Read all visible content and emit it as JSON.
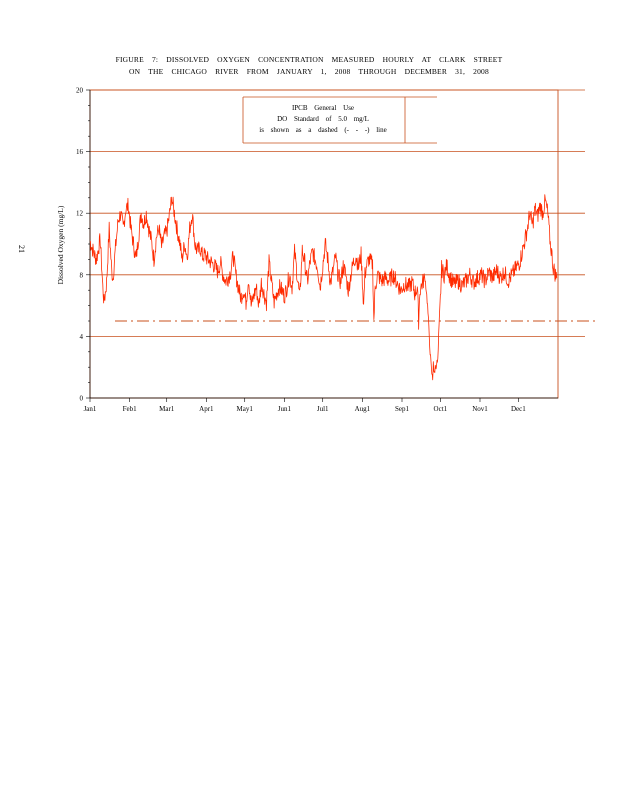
{
  "figure": {
    "title_line1": "FIGURE 7: DISSOLVED OXYGEN CONCENTRATION MEASURED HOURLY AT CLARK STREET",
    "title_line2": "ON THE CHICAGO RIVER FROM JANUARY 1, 2008 THROUGH DECEMBER 31, 2008",
    "page_number": "21"
  },
  "legend": {
    "line1": "IPCB General Use",
    "line2": "DO Standard of 5.0 mg/L",
    "line3": "is shown as a dashed (- - -) line"
  },
  "colors": {
    "series": "#ff2a00",
    "axis_frame": "#c8501e",
    "gridline": "#c8501e",
    "text": "#000000"
  },
  "chart_data": {
    "type": "line",
    "title": "FIGURE 7: DISSOLVED OXYGEN CONCENTRATION MEASURED HOURLY AT CLARK STREET ON THE CHICAGO RIVER FROM JANUARY 1, 2008 THROUGH DECEMBER 31, 2008",
    "xlabel": "",
    "ylabel": "Dissolved Oxygen (mg/L)",
    "xlim": [
      0,
      366
    ],
    "ylim": [
      0,
      20
    ],
    "yticks": [
      0,
      4,
      8,
      12,
      16,
      20
    ],
    "gridlines_y": [
      4,
      8,
      12,
      16,
      20
    ],
    "x_ticks": [
      {
        "label": "Jan1",
        "day": 0
      },
      {
        "label": "Feb1",
        "day": 31
      },
      {
        "label": "Mar1",
        "day": 60
      },
      {
        "label": "Apr1",
        "day": 91
      },
      {
        "label": "May1",
        "day": 121
      },
      {
        "label": "Jun1",
        "day": 152
      },
      {
        "label": "Jul1",
        "day": 182
      },
      {
        "label": "Aug1",
        "day": 213
      },
      {
        "label": "Sep1",
        "day": 244
      },
      {
        "label": "Oct1",
        "day": 274
      },
      {
        "label": "Nov1",
        "day": 305
      },
      {
        "label": "Dec1",
        "day": 335
      }
    ],
    "standard": {
      "value": 5.0,
      "style": "dashed"
    },
    "series": [
      {
        "name": "Dissolved Oxygen (hourly)",
        "points": [
          [
            0,
            10.2
          ],
          [
            3,
            9.4
          ],
          [
            5,
            9.0
          ],
          [
            8,
            10.3
          ],
          [
            10,
            7.2
          ],
          [
            11,
            6.2
          ],
          [
            13,
            7.5
          ],
          [
            15,
            11.0
          ],
          [
            17,
            8.2
          ],
          [
            18,
            7.8
          ],
          [
            20,
            9.8
          ],
          [
            22,
            11.5
          ],
          [
            24,
            12.0
          ],
          [
            26,
            11.0
          ],
          [
            28,
            12.3
          ],
          [
            30,
            12.5
          ],
          [
            32,
            11.0
          ],
          [
            34,
            10.0
          ],
          [
            36,
            9.0
          ],
          [
            38,
            10.5
          ],
          [
            40,
            12.0
          ],
          [
            42,
            11.3
          ],
          [
            44,
            12.0
          ],
          [
            46,
            11.0
          ],
          [
            48,
            10.2
          ],
          [
            50,
            9.0
          ],
          [
            52,
            10.5
          ],
          [
            54,
            11.0
          ],
          [
            56,
            9.8
          ],
          [
            58,
            10.5
          ],
          [
            60,
            10.8
          ],
          [
            62,
            11.8
          ],
          [
            64,
            13.0
          ],
          [
            66,
            12.0
          ],
          [
            68,
            11.0
          ],
          [
            70,
            10.2
          ],
          [
            72,
            9.0
          ],
          [
            74,
            10.0
          ],
          [
            76,
            9.2
          ],
          [
            78,
            11.0
          ],
          [
            80,
            12.0
          ],
          [
            82,
            10.0
          ],
          [
            84,
            9.5
          ],
          [
            86,
            9.8
          ],
          [
            88,
            9.2
          ],
          [
            90,
            9.3
          ],
          [
            92,
            9.0
          ],
          [
            95,
            8.8
          ],
          [
            98,
            8.5
          ],
          [
            100,
            8.2
          ],
          [
            102,
            8.8
          ],
          [
            104,
            8.0
          ],
          [
            106,
            7.6
          ],
          [
            108,
            7.8
          ],
          [
            110,
            8.2
          ],
          [
            112,
            9.3
          ],
          [
            114,
            8.0
          ],
          [
            116,
            7.2
          ],
          [
            118,
            6.5
          ],
          [
            120,
            7.0
          ],
          [
            122,
            6.2
          ],
          [
            124,
            7.8
          ],
          [
            126,
            6.0
          ],
          [
            128,
            6.6
          ],
          [
            130,
            7.2
          ],
          [
            132,
            6.0
          ],
          [
            134,
            7.5
          ],
          [
            136,
            6.8
          ],
          [
            138,
            6.2
          ],
          [
            140,
            8.8
          ],
          [
            142,
            7.5
          ],
          [
            144,
            6.2
          ],
          [
            146,
            6.8
          ],
          [
            148,
            7.2
          ],
          [
            150,
            7.0
          ],
          [
            152,
            6.6
          ],
          [
            154,
            7.2
          ],
          [
            156,
            8.0
          ],
          [
            158,
            7.2
          ],
          [
            160,
            9.5
          ],
          [
            162,
            8.0
          ],
          [
            164,
            6.5
          ],
          [
            166,
            9.6
          ],
          [
            168,
            8.8
          ],
          [
            170,
            7.5
          ],
          [
            172,
            8.8
          ],
          [
            174,
            9.5
          ],
          [
            176,
            9.0
          ],
          [
            178,
            8.5
          ],
          [
            180,
            7.2
          ],
          [
            182,
            8.6
          ],
          [
            184,
            10.0
          ],
          [
            186,
            9.0
          ],
          [
            188,
            7.5
          ],
          [
            190,
            8.2
          ],
          [
            192,
            9.2
          ],
          [
            194,
            8.0
          ],
          [
            196,
            7.5
          ],
          [
            198,
            8.6
          ],
          [
            200,
            8.0
          ],
          [
            202,
            7.0
          ],
          [
            204,
            8.0
          ],
          [
            206,
            8.8
          ],
          [
            208,
            9.2
          ],
          [
            210,
            8.5
          ],
          [
            212,
            9.3
          ],
          [
            214,
            6.0
          ],
          [
            215,
            8.0
          ],
          [
            216,
            8.5
          ],
          [
            218,
            9.0
          ],
          [
            219,
            8.9
          ],
          [
            221,
            8.7
          ],
          [
            222,
            5.0
          ],
          [
            223,
            7.2
          ],
          [
            225,
            8.0
          ],
          [
            228,
            7.6
          ],
          [
            231,
            7.8
          ],
          [
            234,
            7.6
          ],
          [
            237,
            8.0
          ],
          [
            240,
            7.5
          ],
          [
            243,
            7.0
          ],
          [
            246,
            7.4
          ],
          [
            249,
            7.2
          ],
          [
            252,
            7.5
          ],
          [
            254,
            6.8
          ],
          [
            256,
            7.2
          ],
          [
            257,
            5.0
          ],
          [
            258,
            7.0
          ],
          [
            260,
            7.5
          ],
          [
            262,
            7.8
          ],
          [
            263,
            7.0
          ],
          [
            264,
            6.0
          ],
          [
            265,
            4.5
          ],
          [
            266,
            3.0
          ],
          [
            267,
            1.8
          ],
          [
            268,
            1.2
          ],
          [
            268.5,
            2.5
          ],
          [
            269,
            1.5
          ],
          [
            270,
            2.0
          ],
          [
            271,
            2.2
          ],
          [
            272,
            2.4
          ],
          [
            275,
            8.4
          ],
          [
            277,
            8.0
          ],
          [
            279,
            8.6
          ],
          [
            281,
            8.0
          ],
          [
            283,
            7.6
          ],
          [
            285,
            7.4
          ],
          [
            288,
            7.6
          ],
          [
            291,
            7.3
          ],
          [
            294,
            7.6
          ],
          [
            297,
            8.0
          ],
          [
            300,
            7.5
          ],
          [
            303,
            7.8
          ],
          [
            306,
            8.0
          ],
          [
            309,
            7.6
          ],
          [
            312,
            8.2
          ],
          [
            315,
            7.8
          ],
          [
            318,
            8.3
          ],
          [
            321,
            7.8
          ],
          [
            324,
            8.2
          ],
          [
            327,
            7.6
          ],
          [
            330,
            8.0
          ],
          [
            333,
            8.4
          ],
          [
            336,
            8.8
          ],
          [
            338,
            9.5
          ],
          [
            340,
            10.2
          ],
          [
            342,
            11.0
          ],
          [
            344,
            12.0
          ],
          [
            346,
            11.2
          ],
          [
            348,
            12.3
          ],
          [
            350,
            11.8
          ],
          [
            352,
            12.5
          ],
          [
            354,
            12.0
          ],
          [
            356,
            12.8
          ],
          [
            358,
            12.0
          ],
          [
            359,
            11.0
          ],
          [
            360,
            10.0
          ],
          [
            361,
            9.5
          ],
          [
            362,
            8.6
          ],
          [
            363,
            8.3
          ],
          [
            364,
            8.0
          ],
          [
            365,
            7.8
          ]
        ]
      }
    ]
  }
}
